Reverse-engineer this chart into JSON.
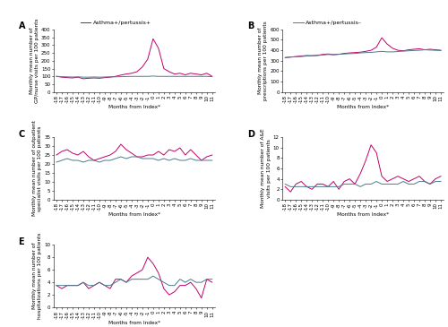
{
  "months": [
    -18,
    -17,
    -16,
    -15,
    -14,
    -13,
    -12,
    -11,
    -10,
    -9,
    -8,
    -7,
    -6,
    -5,
    -4,
    -3,
    -2,
    -1,
    0,
    1,
    2,
    3,
    4,
    5,
    6,
    7,
    8,
    9,
    10,
    11
  ],
  "color_pos": "#C0006A",
  "color_neg": "#4A7C8E",
  "legend_pos": "Asthma+/pertussis+",
  "legend_neg": "Asthma+/pertussis–",
  "xlabel": "Months from Index*",
  "A_pos": [
    100,
    95,
    92,
    90,
    95,
    85,
    88,
    90,
    88,
    92,
    95,
    100,
    108,
    115,
    120,
    130,
    160,
    210,
    340,
    280,
    150,
    130,
    115,
    120,
    110,
    120,
    115,
    110,
    120,
    100
  ],
  "A_neg": [
    100,
    98,
    97,
    96,
    97,
    95,
    95,
    96,
    95,
    96,
    97,
    97,
    98,
    99,
    100,
    100,
    100,
    100,
    102,
    100,
    100,
    100,
    100,
    100,
    100,
    100,
    100,
    100,
    100,
    98
  ],
  "A_ylabel": "Monthly mean number of\nGP/nurse visits per 100 patients",
  "A_ylim": [
    0,
    400
  ],
  "A_yticks": [
    0,
    50,
    100,
    150,
    200,
    250,
    300,
    350,
    400
  ],
  "B_pos": [
    330,
    335,
    340,
    345,
    350,
    348,
    352,
    360,
    365,
    358,
    362,
    370,
    375,
    378,
    382,
    390,
    400,
    430,
    520,
    460,
    420,
    400,
    395,
    405,
    410,
    415,
    405,
    410,
    405,
    400
  ],
  "B_neg": [
    330,
    335,
    338,
    340,
    345,
    348,
    350,
    355,
    360,
    358,
    362,
    365,
    368,
    370,
    375,
    378,
    380,
    385,
    390,
    385,
    385,
    388,
    392,
    395,
    398,
    400,
    405,
    402,
    400,
    398
  ],
  "B_ylabel": "Monthly mean number of\nprescriptions per 100 patients",
  "B_ylim": [
    0,
    600
  ],
  "B_yticks": [
    0,
    100,
    200,
    300,
    400,
    500,
    600
  ],
  "C_pos": [
    25,
    27,
    28,
    26,
    25,
    27,
    24,
    22,
    23,
    24,
    25,
    27,
    31,
    28,
    26,
    24,
    24,
    25,
    25,
    27,
    25,
    28,
    27,
    29,
    25,
    28,
    25,
    22,
    24,
    25
  ],
  "C_neg": [
    21,
    22,
    23,
    22,
    22,
    21,
    22,
    22,
    21,
    22,
    22,
    23,
    24,
    23,
    24,
    24,
    23,
    23,
    23,
    22,
    23,
    22,
    23,
    22,
    22,
    23,
    22,
    22,
    22,
    22
  ],
  "C_ylabel": "Monthly mean number of outpatient\nspecialist visits per 100 patients",
  "C_ylim": [
    0,
    35
  ],
  "C_yticks": [
    0,
    5,
    10,
    15,
    20,
    25,
    30,
    35
  ],
  "D_pos": [
    2.5,
    1.5,
    3.0,
    3.5,
    2.5,
    2.0,
    3.0,
    3.0,
    2.5,
    3.5,
    2.0,
    3.5,
    4.0,
    3.0,
    5.0,
    7.5,
    10.5,
    9.0,
    4.5,
    3.5,
    4.0,
    4.5,
    4.0,
    3.5,
    4.0,
    4.5,
    3.5,
    3.0,
    4.0,
    4.5
  ],
  "D_neg": [
    3.0,
    2.5,
    2.5,
    2.5,
    2.5,
    2.5,
    2.5,
    2.5,
    2.5,
    2.5,
    2.5,
    3.0,
    3.0,
    3.0,
    2.5,
    3.0,
    3.0,
    3.5,
    3.0,
    3.0,
    3.0,
    3.0,
    3.5,
    3.0,
    3.0,
    3.5,
    3.5,
    3.0,
    3.5,
    3.5
  ],
  "D_ylabel": "Monthly mean number of A&E\nvisits per 100 patients",
  "D_ylim": [
    0,
    12
  ],
  "D_yticks": [
    0,
    2,
    4,
    6,
    8,
    10,
    12
  ],
  "E_pos": [
    3.5,
    3.0,
    3.5,
    3.5,
    3.5,
    4.0,
    3.0,
    3.5,
    4.0,
    3.5,
    3.0,
    4.5,
    4.5,
    4.0,
    5.0,
    5.5,
    6.0,
    8.0,
    7.0,
    5.5,
    3.0,
    2.0,
    2.5,
    3.5,
    3.5,
    4.0,
    3.0,
    1.5,
    4.5,
    4.0
  ],
  "E_neg": [
    3.5,
    3.5,
    3.5,
    3.5,
    3.5,
    4.0,
    3.5,
    3.5,
    4.0,
    3.5,
    3.5,
    4.0,
    4.5,
    4.0,
    4.5,
    4.5,
    4.5,
    4.5,
    5.0,
    4.5,
    4.0,
    3.5,
    3.5,
    4.5,
    4.0,
    4.5,
    4.0,
    4.0,
    4.5,
    4.5
  ],
  "E_ylabel": "Monthly mean number of\nhospitalizations per 100 patients",
  "E_ylim": [
    0,
    10
  ],
  "E_yticks": [
    0,
    2,
    4,
    6,
    8,
    10
  ]
}
